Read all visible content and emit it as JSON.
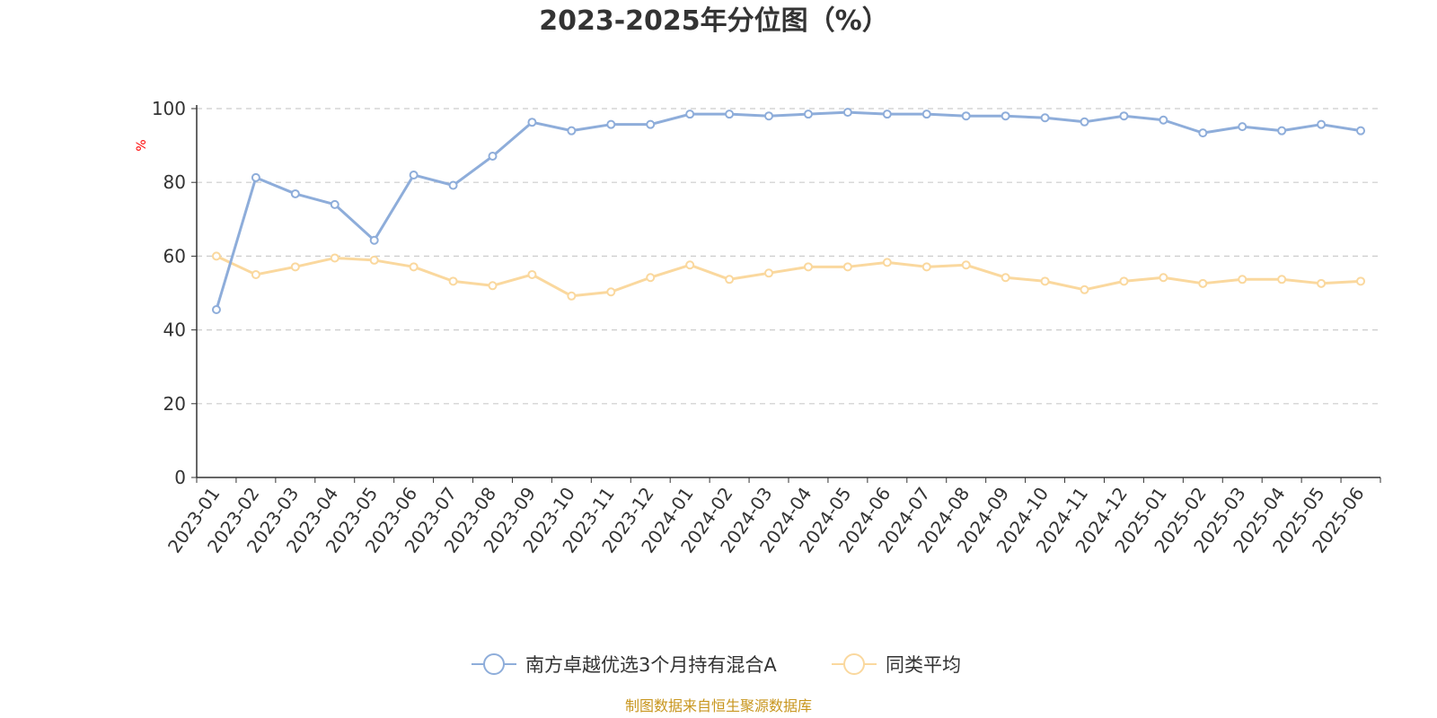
{
  "chart_data": {
    "type": "line",
    "title": "2023-2025年分位图（%）",
    "ylabel": "%",
    "ylim": [
      0,
      100
    ],
    "yticks": [
      0,
      20,
      40,
      60,
      80,
      100
    ],
    "grid": true,
    "legend_position": "bottom",
    "categories": [
      "2023-01",
      "2023-02",
      "2023-03",
      "2023-04",
      "2023-05",
      "2023-06",
      "2023-07",
      "2023-08",
      "2023-09",
      "2023-10",
      "2023-11",
      "2023-12",
      "2024-01",
      "2024-02",
      "2024-03",
      "2024-04",
      "2024-05",
      "2024-06",
      "2024-07",
      "2024-08",
      "2024-09",
      "2024-10",
      "2024-11",
      "2024-12",
      "2025-01",
      "2025-02",
      "2025-03",
      "2025-04",
      "2025-05",
      "2025-06"
    ],
    "series": [
      {
        "name": "南方卓越优选3个月持有混合A",
        "color": "#8eadda",
        "values": [
          45.5,
          81.3,
          76.9,
          74.0,
          64.3,
          82.0,
          79.2,
          87.1,
          96.3,
          94.0,
          95.7,
          95.7,
          98.5,
          98.5,
          98.0,
          98.5,
          99.0,
          98.5,
          98.5,
          98.0,
          98.0,
          97.5,
          96.4,
          98.0,
          96.9,
          93.4,
          95.1,
          94.0,
          95.7,
          94.0
        ]
      },
      {
        "name": "同类平均",
        "color": "#fad89e",
        "values": [
          60.0,
          55.0,
          57.1,
          59.5,
          58.9,
          57.1,
          53.2,
          52.0,
          55.0,
          49.2,
          50.3,
          54.2,
          57.6,
          53.7,
          55.4,
          57.1,
          57.1,
          58.3,
          57.1,
          57.6,
          54.2,
          53.2,
          50.9,
          53.2,
          54.2,
          52.6,
          53.7,
          53.7,
          52.6,
          53.2
        ]
      }
    ]
  },
  "source_text": "制图数据来自恒生聚源数据库",
  "colors": {
    "unit_label": "#ff0000",
    "source_text": "#c8961e",
    "axis": "#333333",
    "grid": "#cccccc"
  }
}
